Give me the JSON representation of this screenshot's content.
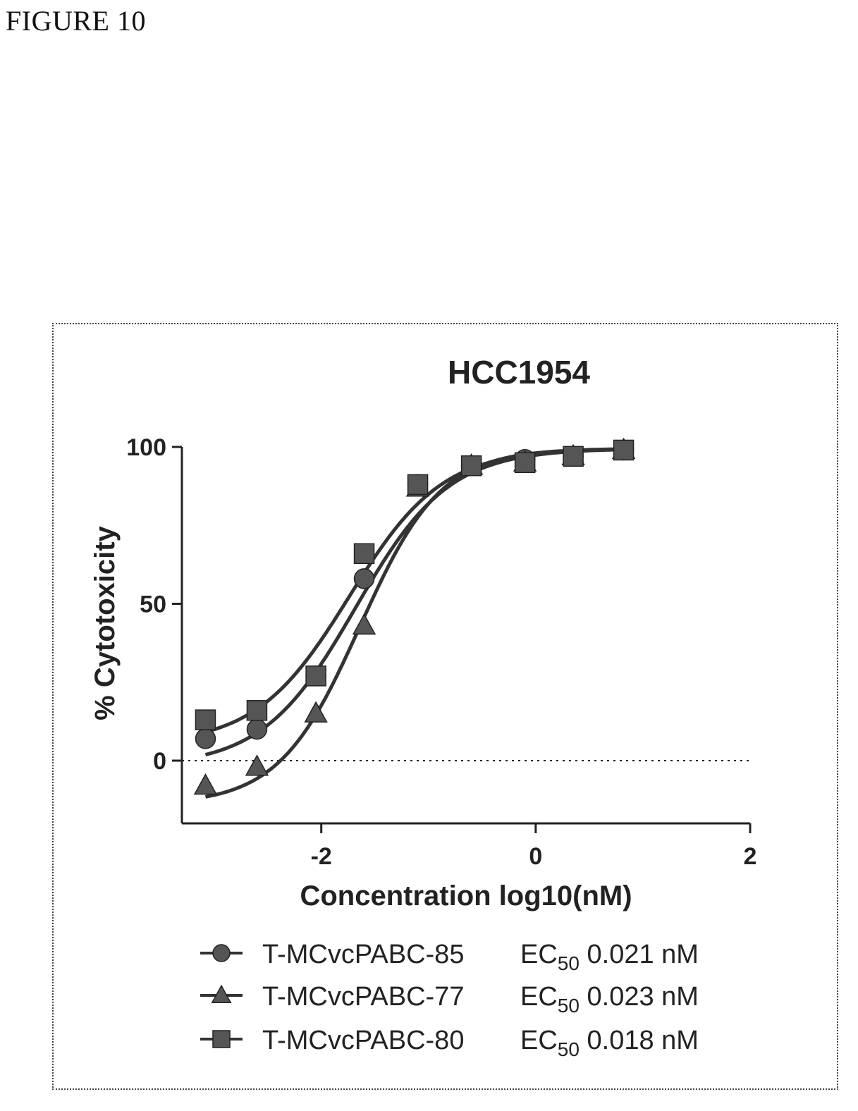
{
  "figure_label": "FIGURE 10",
  "chart_data": {
    "type": "scatter",
    "title": "HCC1954",
    "xlabel": "Concentration log10(nM)",
    "ylabel": "% Cytotoxicity",
    "xlim": [
      -3.3,
      2
    ],
    "ylim": [
      -20,
      100
    ],
    "xticks": [
      -2,
      0,
      2
    ],
    "xtick_labels": [
      "-2",
      "0",
      "2"
    ],
    "yticks": [
      0,
      50,
      100
    ],
    "ytick_labels": [
      "0",
      "50",
      "100"
    ],
    "reference_line": {
      "y": 0,
      "style": "dotted"
    },
    "legend_position": "bottom",
    "series": [
      {
        "name": "T-MCvcPABC-85",
        "ec50_prefix": "EC",
        "ec50_sub": "50",
        "ec50_value": "0.021 nM",
        "marker": "circle",
        "x": [
          -3.08,
          -2.6,
          -2.05,
          -1.6,
          -1.1,
          -0.6,
          -0.1,
          0.35,
          0.82
        ],
        "y": [
          7,
          10,
          27,
          58,
          88,
          94,
          96,
          97,
          99
        ],
        "fit": {
          "bottom": -2,
          "top": 99.5,
          "logec50": -1.68,
          "hill": 1.0
        }
      },
      {
        "name": "T-MCvcPABC-77",
        "ec50_prefix": "EC",
        "ec50_sub": "50",
        "ec50_value": "0.023 nM",
        "marker": "triangle",
        "x": [
          -3.08,
          -2.6,
          -2.05,
          -1.6,
          -1.1,
          -0.6,
          -0.1,
          0.35,
          0.82
        ],
        "y": [
          -8,
          -2,
          15,
          43,
          87,
          94,
          95,
          97,
          99
        ],
        "fit": {
          "bottom": -14,
          "top": 99.5,
          "logec50": -1.64,
          "hill": 1.15
        }
      },
      {
        "name": "T-MCvcPABC-80",
        "ec50_prefix": "EC",
        "ec50_sub": "50",
        "ec50_value": "0.018 nM",
        "marker": "square",
        "x": [
          -3.08,
          -2.6,
          -2.05,
          -1.6,
          -1.1,
          -0.6,
          -0.1,
          0.35,
          0.82
        ],
        "y": [
          13,
          16,
          27,
          66,
          88,
          94,
          95,
          97,
          99
        ],
        "fit": {
          "bottom": 5,
          "top": 99.5,
          "logec50": -1.74,
          "hill": 1.0
        }
      }
    ]
  }
}
